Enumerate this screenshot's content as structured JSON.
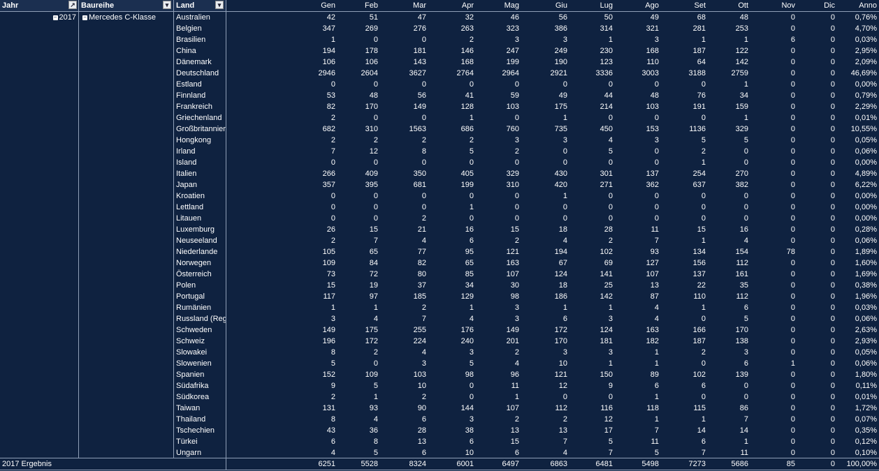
{
  "header": {
    "jahr": "Jahr",
    "baureihe": "Baureihe",
    "land": "Land",
    "months": [
      "Gen",
      "Feb",
      "Mar",
      "Apr",
      "Mag",
      "Giu",
      "Lug",
      "Ago",
      "Set",
      "Ott",
      "Nov",
      "Dic",
      "Anno"
    ]
  },
  "year": "2017",
  "series": "Mercedes C-Klasse",
  "rows": [
    {
      "land": "Australien",
      "values": [
        "42",
        "51",
        "47",
        "32",
        "46",
        "56",
        "50",
        "49",
        "68",
        "48",
        "0",
        "0",
        "0,76%"
      ]
    },
    {
      "land": "Belgien",
      "values": [
        "347",
        "269",
        "276",
        "263",
        "323",
        "386",
        "314",
        "321",
        "281",
        "253",
        "0",
        "0",
        "4,70%"
      ]
    },
    {
      "land": "Brasilien",
      "values": [
        "1",
        "0",
        "0",
        "2",
        "3",
        "3",
        "1",
        "3",
        "1",
        "1",
        "6",
        "0",
        "0,03%"
      ]
    },
    {
      "land": "China",
      "values": [
        "194",
        "178",
        "181",
        "146",
        "247",
        "249",
        "230",
        "168",
        "187",
        "122",
        "0",
        "0",
        "2,95%"
      ]
    },
    {
      "land": "Dänemark",
      "values": [
        "106",
        "106",
        "143",
        "168",
        "199",
        "190",
        "123",
        "110",
        "64",
        "142",
        "0",
        "0",
        "2,09%"
      ]
    },
    {
      "land": "Deutschland",
      "values": [
        "2946",
        "2604",
        "3627",
        "2764",
        "2964",
        "2921",
        "3336",
        "3003",
        "3188",
        "2759",
        "0",
        "0",
        "46,69%"
      ]
    },
    {
      "land": "Estland",
      "values": [
        "0",
        "0",
        "0",
        "0",
        "0",
        "0",
        "0",
        "0",
        "0",
        "1",
        "0",
        "0",
        "0,00%"
      ]
    },
    {
      "land": "Finnland",
      "values": [
        "53",
        "48",
        "56",
        "41",
        "59",
        "49",
        "44",
        "48",
        "76",
        "34",
        "0",
        "0",
        "0,79%"
      ]
    },
    {
      "land": "Frankreich",
      "values": [
        "82",
        "170",
        "149",
        "128",
        "103",
        "175",
        "214",
        "103",
        "191",
        "159",
        "0",
        "0",
        "2,29%"
      ]
    },
    {
      "land": "Griechenland",
      "values": [
        "2",
        "0",
        "0",
        "1",
        "0",
        "1",
        "0",
        "0",
        "0",
        "1",
        "0",
        "0",
        "0,01%"
      ]
    },
    {
      "land": "Großbritannien",
      "values": [
        "682",
        "310",
        "1563",
        "686",
        "760",
        "735",
        "450",
        "153",
        "1136",
        "329",
        "0",
        "0",
        "10,55%"
      ]
    },
    {
      "land": "Hongkong",
      "values": [
        "2",
        "2",
        "2",
        "2",
        "3",
        "3",
        "4",
        "3",
        "5",
        "5",
        "0",
        "0",
        "0,05%"
      ]
    },
    {
      "land": "Irland",
      "values": [
        "7",
        "12",
        "8",
        "5",
        "2",
        "0",
        "5",
        "0",
        "2",
        "0",
        "0",
        "0",
        "0,06%"
      ]
    },
    {
      "land": "Island",
      "values": [
        "0",
        "0",
        "0",
        "0",
        "0",
        "0",
        "0",
        "0",
        "1",
        "0",
        "0",
        "0",
        "0,00%"
      ]
    },
    {
      "land": "Italien",
      "values": [
        "266",
        "409",
        "350",
        "405",
        "329",
        "430",
        "301",
        "137",
        "254",
        "270",
        "0",
        "0",
        "4,89%"
      ]
    },
    {
      "land": "Japan",
      "values": [
        "357",
        "395",
        "681",
        "199",
        "310",
        "420",
        "271",
        "362",
        "637",
        "382",
        "0",
        "0",
        "6,22%"
      ]
    },
    {
      "land": "Kroatien",
      "values": [
        "0",
        "0",
        "0",
        "0",
        "0",
        "1",
        "0",
        "0",
        "0",
        "0",
        "0",
        "0",
        "0,00%"
      ]
    },
    {
      "land": "Lettland",
      "values": [
        "0",
        "0",
        "0",
        "1",
        "0",
        "0",
        "0",
        "0",
        "0",
        "0",
        "0",
        "0",
        "0,00%"
      ]
    },
    {
      "land": "Litauen",
      "values": [
        "0",
        "0",
        "2",
        "0",
        "0",
        "0",
        "0",
        "0",
        "0",
        "0",
        "0",
        "0",
        "0,00%"
      ]
    },
    {
      "land": "Luxemburg",
      "values": [
        "26",
        "15",
        "21",
        "16",
        "15",
        "18",
        "28",
        "11",
        "15",
        "16",
        "0",
        "0",
        "0,28%"
      ]
    },
    {
      "land": "Neuseeland",
      "values": [
        "2",
        "7",
        "4",
        "6",
        "2",
        "4",
        "2",
        "7",
        "1",
        "4",
        "0",
        "0",
        "0,06%"
      ]
    },
    {
      "land": "Niederlande",
      "values": [
        "105",
        "65",
        "77",
        "95",
        "121",
        "194",
        "102",
        "93",
        "134",
        "154",
        "78",
        "0",
        "1,89%"
      ]
    },
    {
      "land": "Norwegen",
      "values": [
        "109",
        "84",
        "82",
        "65",
        "163",
        "67",
        "69",
        "127",
        "156",
        "112",
        "0",
        "0",
        "1,60%"
      ]
    },
    {
      "land": "Österreich",
      "values": [
        "73",
        "72",
        "80",
        "85",
        "107",
        "124",
        "141",
        "107",
        "137",
        "161",
        "0",
        "0",
        "1,69%"
      ]
    },
    {
      "land": "Polen",
      "values": [
        "15",
        "19",
        "37",
        "34",
        "30",
        "18",
        "25",
        "13",
        "22",
        "35",
        "0",
        "0",
        "0,38%"
      ]
    },
    {
      "land": "Portugal",
      "values": [
        "117",
        "97",
        "185",
        "129",
        "98",
        "186",
        "142",
        "87",
        "110",
        "112",
        "0",
        "0",
        "1,96%"
      ]
    },
    {
      "land": "Rumänien",
      "values": [
        "1",
        "1",
        "2",
        "1",
        "3",
        "1",
        "1",
        "4",
        "1",
        "6",
        "0",
        "0",
        "0,03%"
      ]
    },
    {
      "land": "Russland (Reg",
      "values": [
        "3",
        "4",
        "7",
        "4",
        "3",
        "6",
        "3",
        "4",
        "0",
        "5",
        "0",
        "0",
        "0,06%"
      ]
    },
    {
      "land": "Schweden",
      "values": [
        "149",
        "175",
        "255",
        "176",
        "149",
        "172",
        "124",
        "163",
        "166",
        "170",
        "0",
        "0",
        "2,63%"
      ]
    },
    {
      "land": "Schweiz",
      "values": [
        "196",
        "172",
        "224",
        "240",
        "201",
        "170",
        "181",
        "182",
        "187",
        "138",
        "0",
        "0",
        "2,93%"
      ]
    },
    {
      "land": "Slowakei",
      "values": [
        "8",
        "2",
        "4",
        "3",
        "2",
        "3",
        "3",
        "1",
        "2",
        "3",
        "0",
        "0",
        "0,05%"
      ]
    },
    {
      "land": "Slowenien",
      "values": [
        "5",
        "0",
        "3",
        "5",
        "4",
        "10",
        "1",
        "1",
        "0",
        "6",
        "1",
        "0",
        "0,06%"
      ]
    },
    {
      "land": "Spanien",
      "values": [
        "152",
        "109",
        "103",
        "98",
        "96",
        "121",
        "150",
        "89",
        "102",
        "139",
        "0",
        "0",
        "1,80%"
      ]
    },
    {
      "land": "Südafrika",
      "values": [
        "9",
        "5",
        "10",
        "0",
        "11",
        "12",
        "9",
        "6",
        "6",
        "0",
        "0",
        "0",
        "0,11%"
      ]
    },
    {
      "land": "Südkorea",
      "values": [
        "2",
        "1",
        "2",
        "0",
        "1",
        "0",
        "0",
        "1",
        "0",
        "0",
        "0",
        "0",
        "0,01%"
      ]
    },
    {
      "land": "Taiwan",
      "values": [
        "131",
        "93",
        "90",
        "144",
        "107",
        "112",
        "116",
        "118",
        "115",
        "86",
        "0",
        "0",
        "1,72%"
      ]
    },
    {
      "land": "Thailand",
      "values": [
        "8",
        "4",
        "6",
        "3",
        "2",
        "2",
        "12",
        "1",
        "1",
        "7",
        "0",
        "0",
        "0,07%"
      ]
    },
    {
      "land": "Tschechien",
      "values": [
        "43",
        "36",
        "28",
        "38",
        "13",
        "13",
        "17",
        "7",
        "14",
        "14",
        "0",
        "0",
        "0,35%"
      ]
    },
    {
      "land": "Türkei",
      "values": [
        "6",
        "8",
        "13",
        "6",
        "15",
        "7",
        "5",
        "11",
        "6",
        "1",
        "0",
        "0",
        "0,12%"
      ]
    },
    {
      "land": "Ungarn",
      "values": [
        "4",
        "5",
        "6",
        "10",
        "6",
        "4",
        "7",
        "5",
        "7",
        "11",
        "0",
        "0",
        "0,10%"
      ]
    }
  ],
  "total": {
    "label": "2017 Ergebnis",
    "values": [
      "6251",
      "5528",
      "8324",
      "6001",
      "6497",
      "6863",
      "6481",
      "5498",
      "7273",
      "5686",
      "85",
      "0",
      "100,00%"
    ]
  },
  "colors": {
    "background": "#0f2240",
    "header_bg": "#1b2f50",
    "grid_line": "#8f9fb7",
    "text": "#ffffff"
  }
}
